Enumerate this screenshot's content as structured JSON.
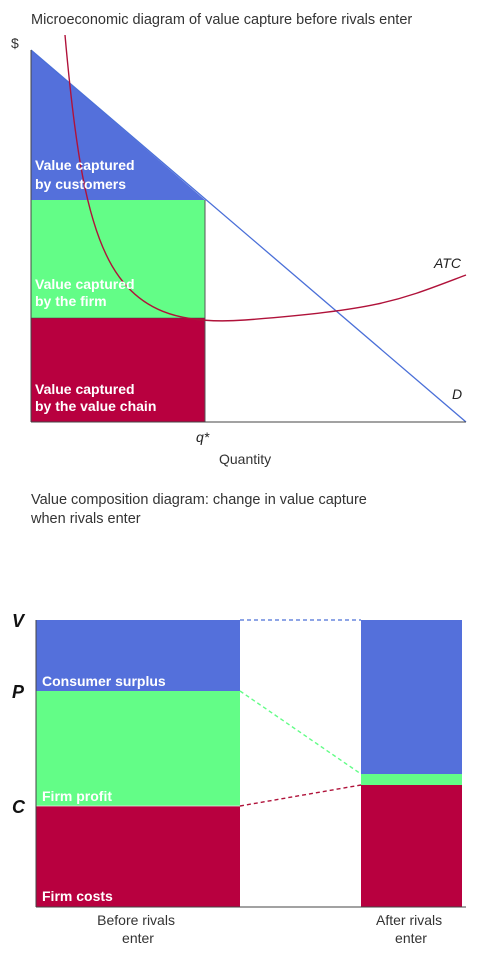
{
  "colors": {
    "customers": "#5470db",
    "firm": "#63fd87",
    "chain": "#b8003f",
    "atc": "#b0123a",
    "demand": "#4a6fd8"
  },
  "top": {
    "title": "Microeconomic diagram of value capture before rivals enter",
    "y_label": "$",
    "x_label": "Quantity",
    "q_label": "q*",
    "atc_label": "ATC",
    "d_label": "D",
    "regions": {
      "customers": [
        "Value captured",
        "by customers"
      ],
      "firm": [
        "Value captured",
        "by the firm"
      ],
      "chain": [
        "Value captured",
        "by the value chain"
      ]
    }
  },
  "bottom": {
    "title": [
      "Value composition diagram: change in value capture",
      "when rivals enter"
    ],
    "letters": {
      "v": "V",
      "p": "P",
      "c": "C"
    },
    "labels": {
      "consumer": "Consumer surplus",
      "profit": "Firm profit",
      "costs": "Firm costs"
    },
    "bars": {
      "before": [
        "Before rivals",
        "enter"
      ],
      "after": [
        "After rivals",
        "enter"
      ]
    }
  }
}
